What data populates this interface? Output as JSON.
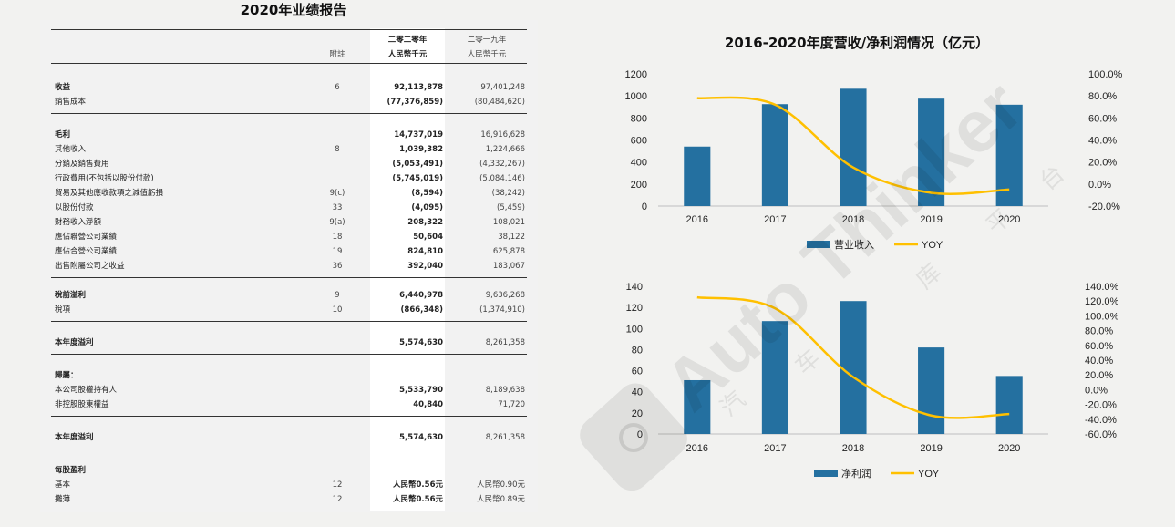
{
  "report": {
    "title": "2020年业绩报告",
    "columns": {
      "note": "附註",
      "current_line1": "二零二零年",
      "current_line2": "人民幣千元",
      "prior_line1": "二零一九年",
      "prior_line2": "人民幣千元"
    },
    "rows": [
      {
        "label": "收益",
        "note": "6",
        "current": "92,113,878",
        "prior": "97,401,248",
        "bold": true
      },
      {
        "label": "銷售成本",
        "note": "",
        "current": "(77,376,859)",
        "prior": "(80,484,620)",
        "bold": false
      },
      {
        "label": "毛利",
        "note": "",
        "current": "14,737,019",
        "prior": "16,916,628",
        "bold": true
      },
      {
        "label": "其他收入",
        "note": "8",
        "current": "1,039,382",
        "prior": "1,224,666",
        "bold": false
      },
      {
        "label": "分銷及銷售費用",
        "note": "",
        "current": "(5,053,491)",
        "prior": "(4,332,267)",
        "bold": false
      },
      {
        "label": "行政費用(不包括以股份付款)",
        "note": "",
        "current": "(5,745,019)",
        "prior": "(5,084,146)",
        "bold": false
      },
      {
        "label": "貿易及其他應收款項之減值虧損",
        "note": "9(c)",
        "current": "(8,594)",
        "prior": "(38,242)",
        "bold": false
      },
      {
        "label": "以股份付款",
        "note": "33",
        "current": "(4,095)",
        "prior": "(5,459)",
        "bold": false
      },
      {
        "label": "財務收入淨額",
        "note": "9(a)",
        "current": "208,322",
        "prior": "108,021",
        "bold": false
      },
      {
        "label": "應佔聯營公司業績",
        "note": "18",
        "current": "50,604",
        "prior": "38,122",
        "bold": false
      },
      {
        "label": "應佔合營公司業績",
        "note": "19",
        "current": "824,810",
        "prior": "625,878",
        "bold": false
      },
      {
        "label": "出售附屬公司之收益",
        "note": "36",
        "current": "392,040",
        "prior": "183,067",
        "bold": false
      },
      {
        "label": "稅前溢利",
        "note": "9",
        "current": "6,440,978",
        "prior": "9,636,268",
        "bold": true
      },
      {
        "label": "稅項",
        "note": "10",
        "current": "(866,348)",
        "prior": "(1,374,910)",
        "bold": false
      },
      {
        "label": "本年度溢利",
        "note": "",
        "current": "5,574,630",
        "prior": "8,261,358",
        "bold": true
      },
      {
        "label": "歸屬：",
        "note": "",
        "current": "",
        "prior": "",
        "bold": true
      },
      {
        "label": "本公司股權持有人",
        "note": "",
        "current": "5,533,790",
        "prior": "8,189,638",
        "bold": false
      },
      {
        "label": "非控股股東權益",
        "note": "",
        "current": "40,840",
        "prior": "71,720",
        "bold": false
      },
      {
        "label": "本年度溢利",
        "note": "",
        "current": "5,574,630",
        "prior": "8,261,358",
        "bold": true
      },
      {
        "label": "每股盈利",
        "note": "",
        "current": "",
        "prior": "",
        "bold": true
      },
      {
        "label": "基本",
        "note": "12",
        "current": "人民幣0.56元",
        "prior": "人民幣0.90元",
        "bold": false
      },
      {
        "label": "攤薄",
        "note": "12",
        "current": "人民幣0.56元",
        "prior": "人民幣0.89元",
        "bold": false
      }
    ]
  },
  "charts_title": "2016-2020年度营收/净利润情况（亿元）",
  "chart_data": [
    {
      "type": "bar",
      "categories": [
        "2016",
        "2017",
        "2018",
        "2019",
        "2020"
      ],
      "series": [
        {
          "name": "营业收入",
          "kind": "bar",
          "axis": "left",
          "values": [
            540,
            925,
            1065,
            975,
            920
          ]
        },
        {
          "name": "YOY",
          "kind": "line",
          "axis": "right",
          "values": [
            78.0,
            72.0,
            15.0,
            -8.0,
            -5.0
          ]
        }
      ],
      "ylim_left": [
        0,
        1200
      ],
      "yticks_left": [
        "0",
        "200",
        "400",
        "600",
        "800",
        "1000",
        "1200"
      ],
      "ylim_right": [
        -20,
        100
      ],
      "yticks_right": [
        "-20.0%",
        "0.0%",
        "20.0%",
        "40.0%",
        "60.0%",
        "80.0%",
        "100.0%"
      ],
      "legend": "bottom",
      "colors": {
        "bar": "#2470a0",
        "line": "#ffc000"
      }
    },
    {
      "type": "bar",
      "categories": [
        "2016",
        "2017",
        "2018",
        "2019",
        "2020"
      ],
      "series": [
        {
          "name": "净利润",
          "kind": "bar",
          "axis": "left",
          "values": [
            51,
            107,
            126,
            82,
            55
          ]
        },
        {
          "name": "YOY",
          "kind": "line",
          "axis": "right",
          "values": [
            125.0,
            110.0,
            17.0,
            -35.0,
            -33.0
          ]
        }
      ],
      "ylim_left": [
        0,
        140
      ],
      "yticks_left": [
        "0",
        "20",
        "40",
        "60",
        "80",
        "100",
        "120",
        "140"
      ],
      "ylim_right": [
        -60,
        140
      ],
      "yticks_right": [
        "-60.0%",
        "-40.0%",
        "-20.0%",
        "0.0%",
        "20.0%",
        "40.0%",
        "60.0%",
        "80.0%",
        "100.0%",
        "120.0%",
        "140.0%"
      ],
      "legend": "bottom",
      "colors": {
        "bar": "#2470a0",
        "line": "#ffc000"
      }
    }
  ],
  "watermark": {
    "text": "Auto Thinker",
    "chars": [
      "汽",
      "车",
      "库",
      "平",
      "台"
    ]
  }
}
